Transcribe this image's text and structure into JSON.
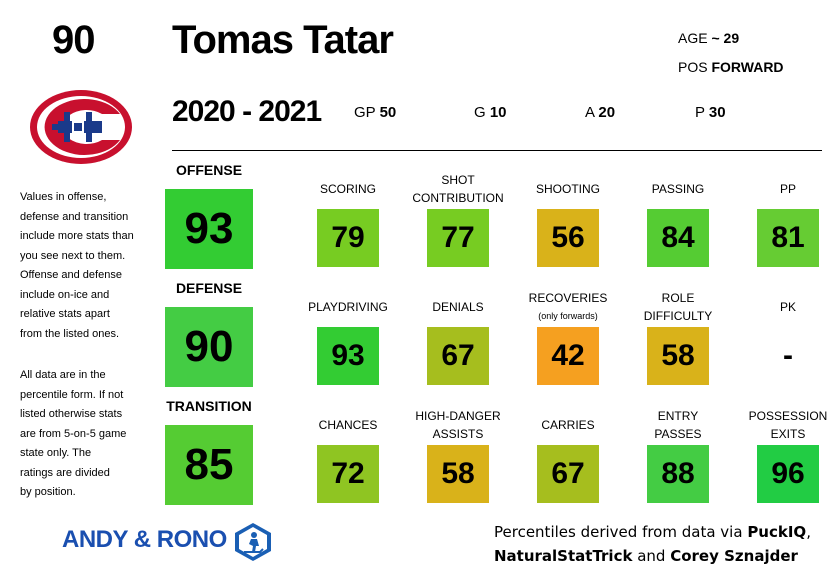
{
  "header": {
    "number": "90",
    "name": "Tomas Tatar",
    "season": "2020 - 2021",
    "age_label": "AGE",
    "age_value": "~ 29",
    "pos_label": "POS",
    "pos_value": "FORWARD",
    "gp_label": "GP",
    "gp_value": "50",
    "g_label": "G",
    "g_value": "10",
    "a_label": "A",
    "a_value": "20",
    "p_label": "P",
    "p_value": "30"
  },
  "categories": [
    {
      "title": "OFFENSE",
      "value": "93",
      "color": "#33cc33"
    },
    {
      "title": "DEFENSE",
      "value": "90",
      "color": "#44cc44"
    },
    {
      "title": "TRANSITION",
      "value": "85",
      "color": "#55cc33"
    }
  ],
  "rows": [
    [
      {
        "title": "SCORING",
        "title2": "",
        "sub": "",
        "value": "79",
        "color": "#77cc22"
      },
      {
        "title": "SHOT",
        "title2": "CONTRIBUTION",
        "sub": "",
        "value": "77",
        "color": "#77cc22"
      },
      {
        "title": "SHOOTING",
        "title2": "",
        "sub": "",
        "value": "56",
        "color": "#d9b21a"
      },
      {
        "title": "PASSING",
        "title2": "",
        "sub": "",
        "value": "84",
        "color": "#55cc33"
      },
      {
        "title": "PP",
        "title2": "",
        "sub": "",
        "value": "81",
        "color": "#66cc33"
      }
    ],
    [
      {
        "title": "PLAYDRIVING",
        "title2": "",
        "sub": "",
        "value": "93",
        "color": "#33cc33"
      },
      {
        "title": "DENIALS",
        "title2": "",
        "sub": "",
        "value": "67",
        "color": "#a6be1e"
      },
      {
        "title": "RECOVERIES",
        "title2": "",
        "sub": "(only forwards)",
        "value": "42",
        "color": "#f5a020"
      },
      {
        "title": "ROLE",
        "title2": "DIFFICULTY",
        "sub": "",
        "value": "58",
        "color": "#d9b21a"
      },
      {
        "title": "PK",
        "title2": "",
        "sub": "",
        "value": "-",
        "color": ""
      }
    ],
    [
      {
        "title": "CHANCES",
        "title2": "",
        "sub": "",
        "value": "72",
        "color": "#8fc522"
      },
      {
        "title": "HIGH-DANGER",
        "title2": "ASSISTS",
        "sub": "",
        "value": "58",
        "color": "#d9b21a"
      },
      {
        "title": "CARRIES",
        "title2": "",
        "sub": "",
        "value": "67",
        "color": "#a6be1e"
      },
      {
        "title": "ENTRY",
        "title2": "PASSES",
        "sub": "",
        "value": "88",
        "color": "#44cc44"
      },
      {
        "title": "POSSESSION",
        "title2": "EXITS",
        "sub": "",
        "value": "96",
        "color": "#22cc44"
      }
    ]
  ],
  "notes": {
    "para1": [
      "Values in offense,",
      "defense and transition",
      "include more stats than",
      "you see next to them.",
      "Offense and defense",
      "include on-ice and",
      "relative stats apart",
      "from the listed ones."
    ],
    "para2": [
      "All data are in the",
      "percentile form. If not",
      "listed otherwise stats",
      "are from 5-on-5 game",
      "state only. The",
      "ratings are divided",
      "by position."
    ]
  },
  "footer": {
    "brand": "ANDY & RONO",
    "credit_prefix": "Percentiles derived from data via ",
    "credit_b1": "PuckIQ",
    "credit_mid": ",",
    "credit_b2": "NaturalStatTrick",
    "credit_and": " and ",
    "credit_b3": "Corey Sznajder"
  }
}
